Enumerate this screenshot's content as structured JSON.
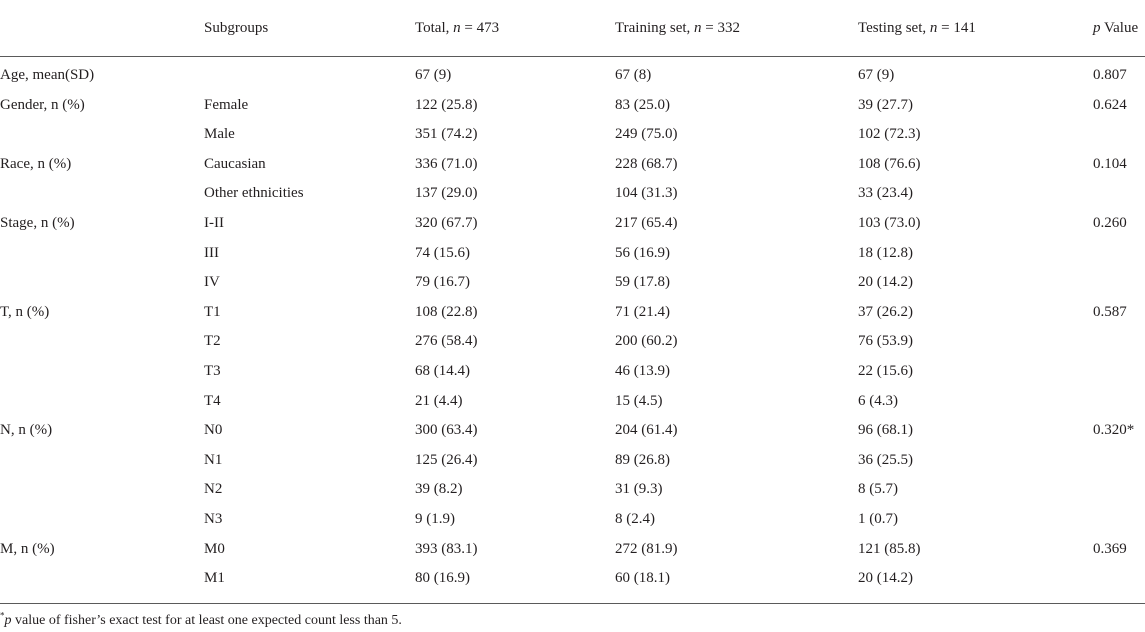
{
  "table": {
    "headers": {
      "variable": "",
      "subgroups": "Subgroups",
      "total_prefix": "Total, ",
      "total_n": "n",
      "total_suffix": " = 473",
      "train_prefix": "Training set, ",
      "train_n": "n",
      "train_suffix": " = 332",
      "test_prefix": "Testing set, ",
      "test_n": "n",
      "test_suffix": " = 141",
      "p_italic": "p",
      "p_suffix": " Value"
    },
    "rows": [
      {
        "variable": "Age, mean(SD)",
        "subgroup": "",
        "total": "67 (9)",
        "train": "67 (8)",
        "test": "67 (9)",
        "p": "0.807"
      },
      {
        "variable": "Gender, n (%)",
        "subgroup": "Female",
        "total": "122 (25.8)",
        "train": "83 (25.0)",
        "test": "39 (27.7)",
        "p": "0.624"
      },
      {
        "variable": "",
        "subgroup": "Male",
        "total": "351 (74.2)",
        "train": "249 (75.0)",
        "test": "102 (72.3)",
        "p": ""
      },
      {
        "variable": "Race, n (%)",
        "subgroup": "Caucasian",
        "total": "336 (71.0)",
        "train": "228 (68.7)",
        "test": "108 (76.6)",
        "p": "0.104"
      },
      {
        "variable": "",
        "subgroup": "Other ethnicities",
        "total": "137 (29.0)",
        "train": "104 (31.3)",
        "test": "33 (23.4)",
        "p": ""
      },
      {
        "variable": "Stage, n (%)",
        "subgroup": "I-II",
        "total": "320 (67.7)",
        "train": "217 (65.4)",
        "test": "103 (73.0)",
        "p": "0.260"
      },
      {
        "variable": "",
        "subgroup": "III",
        "total": "74 (15.6)",
        "train": "56 (16.9)",
        "test": "18 (12.8)",
        "p": ""
      },
      {
        "variable": "",
        "subgroup": "IV",
        "total": "79 (16.7)",
        "train": "59 (17.8)",
        "test": "20 (14.2)",
        "p": ""
      },
      {
        "variable": "T, n (%)",
        "subgroup": "T1",
        "total": "108 (22.8)",
        "train": "71 (21.4)",
        "test": "37 (26.2)",
        "p": "0.587"
      },
      {
        "variable": "",
        "subgroup": "T2",
        "total": "276 (58.4)",
        "train": "200 (60.2)",
        "test": "76 (53.9)",
        "p": ""
      },
      {
        "variable": "",
        "subgroup": "T3",
        "total": "68 (14.4)",
        "train": "46 (13.9)",
        "test": "22 (15.6)",
        "p": ""
      },
      {
        "variable": "",
        "subgroup": "T4",
        "total": "21 (4.4)",
        "train": "15 (4.5)",
        "test": "6 (4.3)",
        "p": ""
      },
      {
        "variable": "N, n (%)",
        "subgroup": "N0",
        "total": "300 (63.4)",
        "train": "204 (61.4)",
        "test": "96 (68.1)",
        "p": "0.320*"
      },
      {
        "variable": "",
        "subgroup": "N1",
        "total": "125 (26.4)",
        "train": "89 (26.8)",
        "test": "36 (25.5)",
        "p": ""
      },
      {
        "variable": "",
        "subgroup": "N2",
        "total": "39 (8.2)",
        "train": "31 (9.3)",
        "test": "8 (5.7)",
        "p": ""
      },
      {
        "variable": "",
        "subgroup": "N3",
        "total": "9 (1.9)",
        "train": "8 (2.4)",
        "test": "1 (0.7)",
        "p": ""
      },
      {
        "variable": "M, n (%)",
        "subgroup": "M0",
        "total": "393 (83.1)",
        "train": "272 (81.9)",
        "test": "121 (85.8)",
        "p": "0.369"
      },
      {
        "variable": "",
        "subgroup": "M1",
        "total": "80 (16.9)",
        "train": "60 (18.1)",
        "test": "20 (14.2)",
        "p": ""
      }
    ]
  },
  "footnote": {
    "marker": "*",
    "p_italic": "p",
    "text": " value of fisher’s exact test for at least one expected count less than 5."
  }
}
